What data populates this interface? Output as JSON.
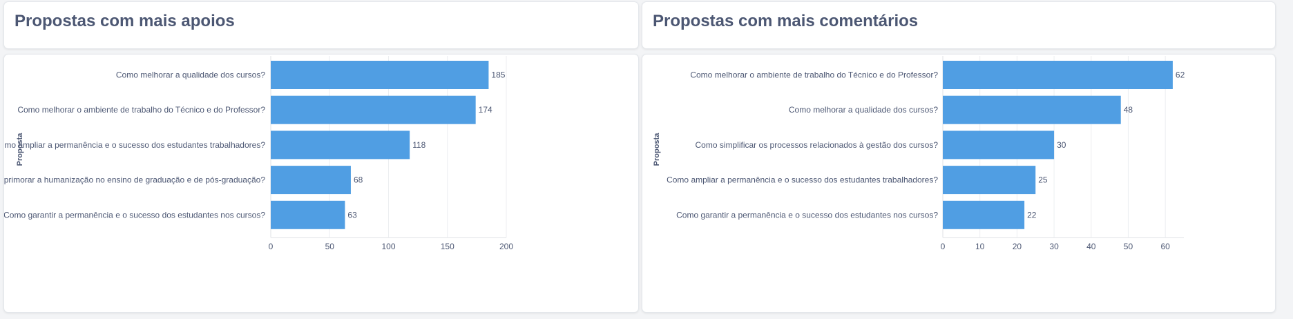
{
  "panels": [
    {
      "title": "Propostas com mais apoios",
      "chart_data": {
        "type": "bar",
        "orientation": "horizontal",
        "ylabel": "Proposta",
        "xlabel": "",
        "xlim": [
          0,
          200
        ],
        "xticks": [
          0,
          50,
          100,
          150,
          200
        ],
        "grid": true,
        "bar_color": "#509ee3",
        "categories": [
          "Como melhorar a qualidade dos cursos?",
          "Como melhorar o ambiente de trabalho do Técnico e do Professor?",
          "Como ampliar a permanência e o sucesso dos estudantes trabalhadores?",
          "Como aprimorar a humanização no ensino de graduação e de pós-graduação?",
          "Como garantir a permanência e o sucesso dos estudantes nos cursos?"
        ],
        "values": [
          185,
          174,
          118,
          68,
          63
        ]
      }
    },
    {
      "title": "Propostas com mais comentários",
      "chart_data": {
        "type": "bar",
        "orientation": "horizontal",
        "ylabel": "Proposta",
        "xlabel": "",
        "xlim": [
          0,
          65
        ],
        "xticks": [
          0,
          10,
          20,
          30,
          40,
          50,
          60
        ],
        "grid": true,
        "bar_color": "#509ee3",
        "categories": [
          "Como melhorar o ambiente de trabalho do Técnico e do Professor?",
          "Como melhorar a qualidade dos cursos?",
          "Como simplificar os processos relacionados à gestão dos cursos?",
          "Como ampliar a permanência e o sucesso dos estudantes trabalhadores?",
          "Como garantir a permanência e o sucesso dos estudantes nos cursos?"
        ],
        "values": [
          62,
          48,
          30,
          25,
          22
        ]
      }
    }
  ]
}
